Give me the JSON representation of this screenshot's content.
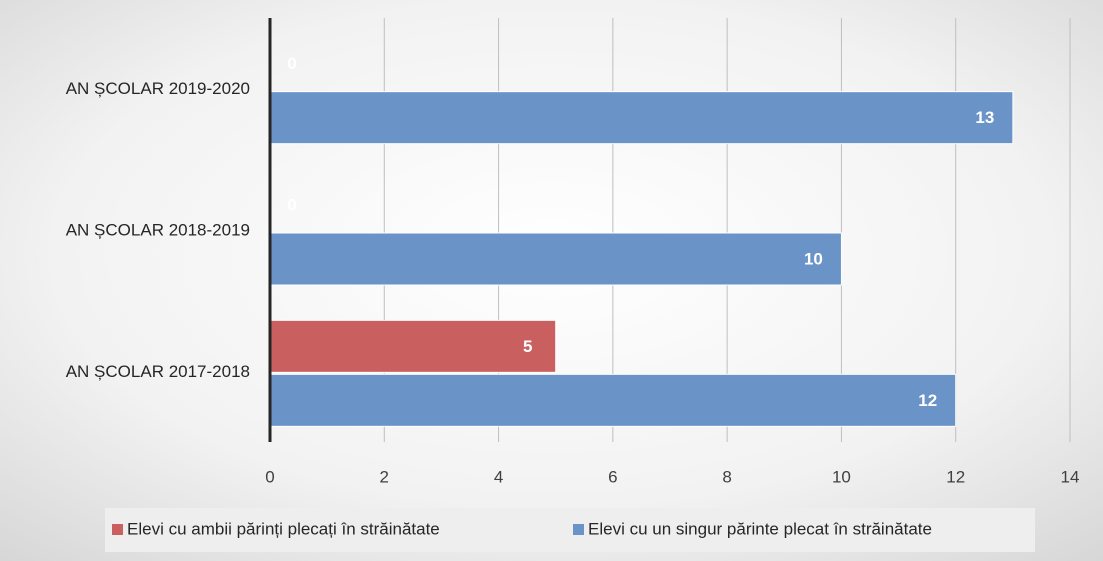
{
  "chart_data": {
    "type": "bar",
    "orientation": "horizontal",
    "categories": [
      "AN ȘCOLAR 2017-2018",
      "AN ȘCOLAR 2018-2019",
      "AN ȘCOLAR 2019-2020"
    ],
    "series": [
      {
        "name": "Elevi cu ambii părinți plecați în străinătate",
        "color": "#c9605f",
        "values": [
          5,
          0,
          0
        ]
      },
      {
        "name": "Elevi cu un singur părinte plecat în străinătate",
        "color": "#6a93c8",
        "values": [
          12,
          10,
          13
        ]
      }
    ],
    "xlim": [
      0,
      14
    ],
    "xticks": [
      0,
      2,
      4,
      6,
      8,
      10,
      12,
      14
    ],
    "grid": true,
    "legend": "bottom"
  }
}
